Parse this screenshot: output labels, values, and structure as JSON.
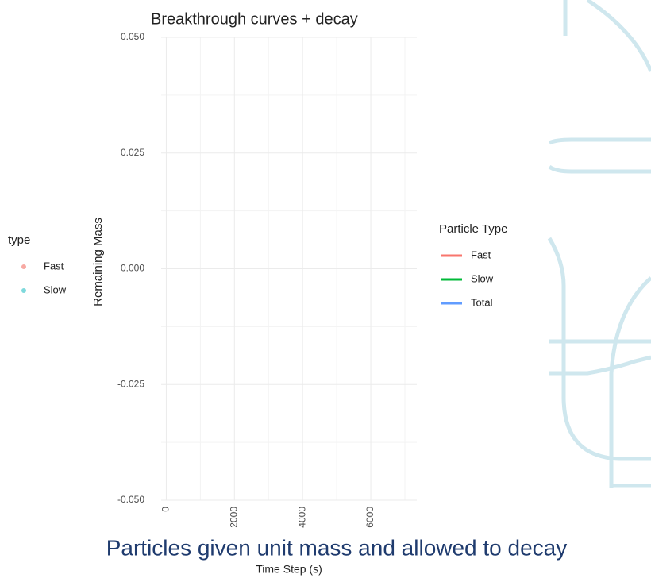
{
  "chart_data": {
    "type": "line",
    "title": "Breakthrough curves + decay",
    "xlabel": "Time Step (s)",
    "ylabel": "Remaining Mass",
    "caption": "Particles given unit mass and allowed to decay",
    "series": [],
    "xlim": [
      -150,
      7350
    ],
    "xticks": [
      0,
      2000,
      4000,
      6000
    ],
    "xminor": [
      1000,
      3000,
      5000,
      7000
    ],
    "ylim": [
      -0.05,
      0.05
    ],
    "yticks": [
      {
        "value": -0.05,
        "label": "-0.050"
      },
      -0.025,
      {
        "value": 0,
        "label": "0.000"
      },
      0.025,
      {
        "value": 0.05,
        "label": "0.050"
      }
    ],
    "yminor": [
      -0.0375,
      -0.0125,
      0.0125,
      0.0375
    ],
    "grid": true,
    "legends": [
      {
        "title": "type",
        "kind": "point",
        "items": [
          {
            "name": "Fast",
            "color": "#f8a9a3"
          },
          {
            "name": "Slow",
            "color": "#7fd9dc"
          }
        ]
      },
      {
        "title": "Particle Type",
        "kind": "line",
        "items": [
          {
            "name": "Fast",
            "color": "#f8766d"
          },
          {
            "name": "Slow",
            "color": "#00ba38"
          },
          {
            "name": "Total",
            "color": "#619cff"
          }
        ]
      }
    ]
  }
}
